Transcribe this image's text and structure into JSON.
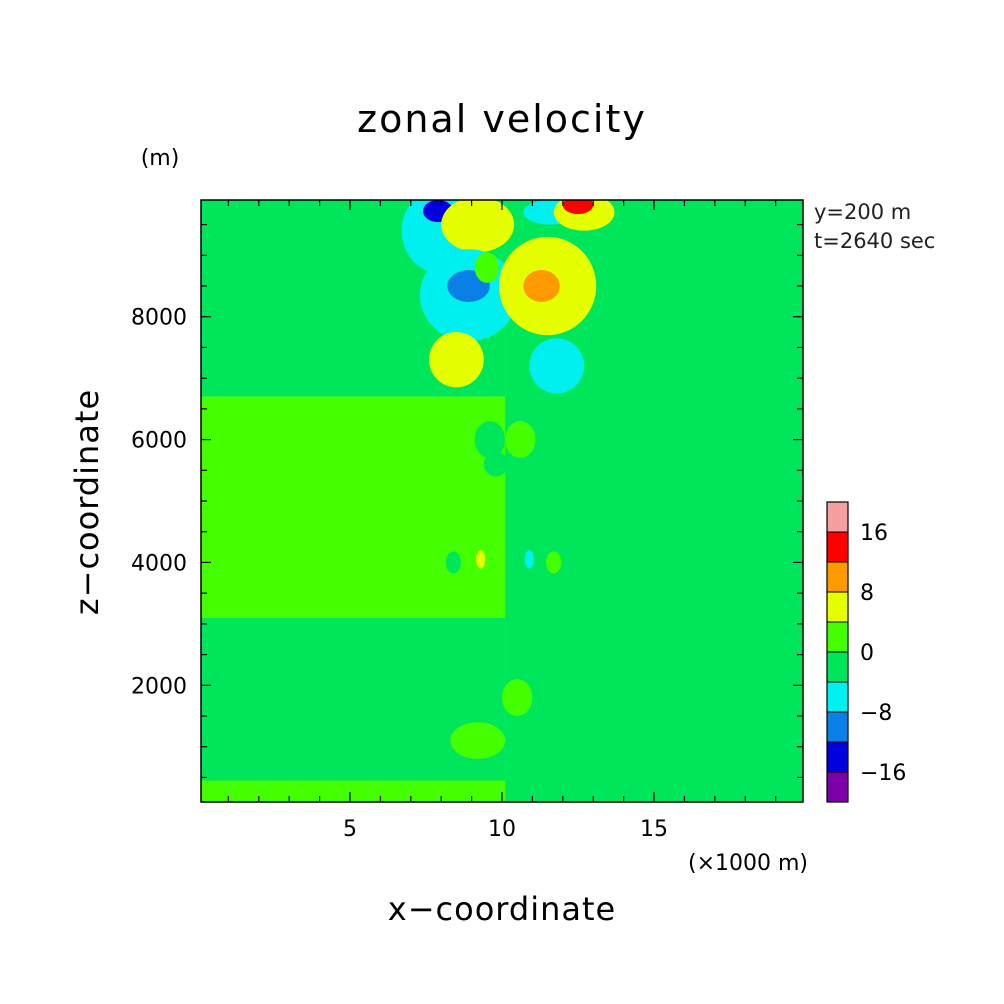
{
  "chart_data": {
    "type": "heatmap",
    "title": "zonal velocity",
    "xlabel": "x−coordinate",
    "ylabel": "z−coordinate",
    "x_unit": "(×1000 m)",
    "y_unit": "(m)",
    "annotations": [
      "y=200 m",
      "t=2640 sec"
    ],
    "xlim": [
      0.1,
      19.9
    ],
    "ylim": [
      100,
      9900
    ],
    "x_ticks": [
      {
        "value": 5,
        "label": "5"
      },
      {
        "value": 10,
        "label": "10"
      },
      {
        "value": 15,
        "label": "15"
      }
    ],
    "y_ticks": [
      {
        "value": 2000,
        "label": "2000"
      },
      {
        "value": 4000,
        "label": "4000"
      },
      {
        "value": 6000,
        "label": "6000"
      },
      {
        "value": 8000,
        "label": "8000"
      }
    ],
    "colorbar": {
      "levels": [
        -24,
        -16,
        -12,
        -8,
        -4,
        0,
        4,
        8,
        12,
        16,
        24
      ],
      "colors": [
        "#7b00a8",
        "#0000e0",
        "#0a7fe6",
        "#00f0f0",
        "#00e65a",
        "#44ff00",
        "#e6ff00",
        "#ff9900",
        "#ff0000",
        "#f5a0a0"
      ],
      "tick_labels": [
        {
          "value": -16,
          "label": "−16"
        },
        {
          "value": -8,
          "label": "−8"
        },
        {
          "value": 0,
          "label": "0"
        },
        {
          "value": 8,
          "label": "8"
        },
        {
          "value": 16,
          "label": "16"
        }
      ]
    },
    "regions": [
      {
        "x": [
          0.1,
          10.1
        ],
        "z": [
          6700,
          9900
        ],
        "value": -2
      },
      {
        "x": [
          0.1,
          10.1
        ],
        "z": [
          3100,
          6700
        ],
        "value": 2
      },
      {
        "x": [
          0.1,
          10.1
        ],
        "z": [
          450,
          3100
        ],
        "value": -2
      },
      {
        "x": [
          0.1,
          10.1
        ],
        "z": [
          100,
          450
        ],
        "value": 2
      },
      {
        "x": [
          10.1,
          19.9
        ],
        "z": [
          100,
          9900
        ],
        "value": -2
      }
    ],
    "features": [
      {
        "cx": 8.0,
        "cz": 9400,
        "rx": 1.3,
        "rz": 700,
        "value": -6
      },
      {
        "cx": 7.9,
        "cz": 9720,
        "rx": 0.5,
        "rz": 180,
        "value": -14
      },
      {
        "cx": 9.2,
        "cz": 9500,
        "rx": 1.2,
        "rz": 450,
        "value": 6
      },
      {
        "cx": 8.9,
        "cz": 8350,
        "rx": 1.6,
        "rz": 750,
        "value": -6
      },
      {
        "cx": 8.9,
        "cz": 8500,
        "rx": 0.7,
        "rz": 260,
        "value": -10
      },
      {
        "cx": 11.5,
        "cz": 8500,
        "rx": 1.6,
        "rz": 800,
        "value": 6
      },
      {
        "cx": 11.3,
        "cz": 8500,
        "rx": 0.6,
        "rz": 260,
        "value": 10
      },
      {
        "cx": 11.6,
        "cz": 9700,
        "rx": 0.9,
        "rz": 200,
        "value": -6
      },
      {
        "cx": 12.7,
        "cz": 9700,
        "rx": 1.0,
        "rz": 300,
        "value": 6
      },
      {
        "cx": 12.5,
        "cz": 9820,
        "rx": 0.5,
        "rz": 150,
        "value": 14
      },
      {
        "cx": 9.5,
        "cz": 8800,
        "rx": 0.4,
        "rz": 250,
        "value": 2
      },
      {
        "cx": 8.5,
        "cz": 7300,
        "rx": 0.9,
        "rz": 450,
        "value": 6
      },
      {
        "cx": 11.8,
        "cz": 7200,
        "rx": 0.9,
        "rz": 450,
        "value": -6
      },
      {
        "cx": 9.6,
        "cz": 6000,
        "rx": 0.5,
        "rz": 300,
        "value": -2
      },
      {
        "cx": 10.6,
        "cz": 6000,
        "rx": 0.5,
        "rz": 300,
        "value": 2
      },
      {
        "cx": 9.8,
        "cz": 5600,
        "rx": 0.4,
        "rz": 200,
        "value": -2
      },
      {
        "cx": 8.4,
        "cz": 4000,
        "rx": 0.25,
        "rz": 180,
        "value": -2
      },
      {
        "cx": 9.3,
        "cz": 4050,
        "rx": 0.15,
        "rz": 150,
        "value": 6
      },
      {
        "cx": 10.9,
        "cz": 4050,
        "rx": 0.15,
        "rz": 150,
        "value": -6
      },
      {
        "cx": 11.7,
        "cz": 4000,
        "rx": 0.25,
        "rz": 180,
        "value": 2
      },
      {
        "cx": 9.5,
        "cz": 1800,
        "rx": 0.5,
        "rz": 300,
        "value": -2
      },
      {
        "cx": 10.5,
        "cz": 1800,
        "rx": 0.5,
        "rz": 300,
        "value": 2
      },
      {
        "cx": 9.2,
        "cz": 1100,
        "rx": 0.9,
        "rz": 300,
        "value": 2
      },
      {
        "cx": 11.2,
        "cz": 1000,
        "rx": 0.8,
        "rz": 250,
        "value": -2
      }
    ]
  }
}
